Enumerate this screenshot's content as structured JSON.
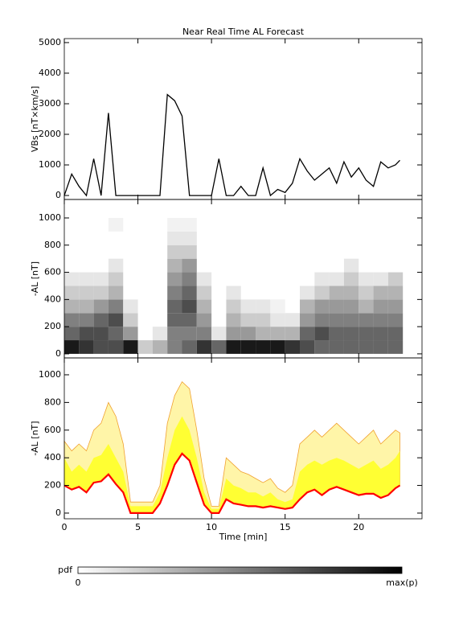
{
  "chart_data": [
    {
      "type": "line",
      "title": "Near Real Time AL Forecast",
      "ylabel": "VBs [nT×km/s]",
      "color": "#000000",
      "x": [
        0,
        0.5,
        1,
        1.5,
        2,
        2.5,
        3,
        3.5,
        4,
        4.5,
        5,
        5.5,
        6,
        6.5,
        7,
        7.5,
        8,
        8.5,
        9,
        9.5,
        10,
        10.5,
        11,
        11.5,
        12,
        12.5,
        13,
        13.5,
        14,
        14.5,
        15,
        15.5,
        16,
        16.5,
        17,
        17.5,
        18,
        18.5,
        19,
        19.5,
        20,
        20.5,
        21,
        21.5,
        22,
        22.5,
        22.8
      ],
      "values": [
        0,
        700,
        300,
        0,
        1200,
        0,
        2700,
        0,
        0,
        0,
        0,
        0,
        0,
        0,
        3300,
        3100,
        2600,
        0,
        0,
        0,
        0,
        1200,
        0,
        0,
        300,
        0,
        0,
        900,
        0,
        200,
        100,
        400,
        1200,
        800,
        500,
        700,
        900,
        400,
        1100,
        600,
        900,
        500,
        300,
        1100,
        900,
        1000,
        1150
      ],
      "xlim": [
        0,
        24.3
      ],
      "ylim": [
        -130,
        5130
      ],
      "xticks": [
        0,
        5,
        10,
        15,
        20
      ],
      "yticks": [
        0,
        1000,
        2000,
        3000,
        4000,
        5000
      ]
    },
    {
      "type": "heatmap",
      "ylabel": "-AL [nT]",
      "color": "#000000",
      "xbins": [
        0,
        1,
        2,
        3,
        4,
        5,
        6,
        7,
        8,
        9,
        10,
        11,
        12,
        13,
        14,
        15,
        16,
        17,
        18,
        19,
        20,
        21,
        22,
        23
      ],
      "ybins": [
        0,
        100,
        200,
        300,
        400,
        500,
        600,
        700,
        800,
        900,
        1000
      ],
      "z": [
        [
          0.9,
          0.6,
          0.5,
          0.3,
          0.2,
          0.1,
          0,
          0,
          0,
          0
        ],
        [
          0.8,
          0.7,
          0.5,
          0.3,
          0.2,
          0.1,
          0,
          0,
          0,
          0
        ],
        [
          0.7,
          0.7,
          0.6,
          0.4,
          0.2,
          0.1,
          0,
          0,
          0,
          0
        ],
        [
          0.7,
          0.6,
          0.7,
          0.5,
          0.3,
          0.2,
          0.1,
          0,
          0,
          0.05
        ],
        [
          0.9,
          0.4,
          0.2,
          0.1,
          0,
          0,
          0,
          0,
          0,
          0
        ],
        [
          0.2,
          0,
          0,
          0,
          0,
          0,
          0,
          0,
          0,
          0
        ],
        [
          0.3,
          0.1,
          0,
          0,
          0,
          0,
          0,
          0,
          0,
          0
        ],
        [
          0.5,
          0.5,
          0.6,
          0.6,
          0.5,
          0.4,
          0.3,
          0.2,
          0.1,
          0.05
        ],
        [
          0.6,
          0.5,
          0.6,
          0.7,
          0.6,
          0.5,
          0.4,
          0.2,
          0.1,
          0.05
        ],
        [
          0.8,
          0.5,
          0.4,
          0.3,
          0.2,
          0.1,
          0,
          0,
          0,
          0
        ],
        [
          0.6,
          0.1,
          0,
          0,
          0,
          0,
          0,
          0,
          0,
          0
        ],
        [
          0.9,
          0.4,
          0.3,
          0.2,
          0.1,
          0,
          0,
          0,
          0,
          0
        ],
        [
          0.9,
          0.4,
          0.2,
          0.1,
          0,
          0,
          0,
          0,
          0,
          0
        ],
        [
          0.9,
          0.3,
          0.2,
          0.1,
          0,
          0,
          0,
          0,
          0,
          0
        ],
        [
          0.9,
          0.3,
          0.1,
          0.05,
          0,
          0,
          0,
          0,
          0,
          0
        ],
        [
          0.8,
          0.3,
          0.1,
          0,
          0,
          0,
          0,
          0,
          0,
          0
        ],
        [
          0.7,
          0.6,
          0.4,
          0.3,
          0.1,
          0,
          0,
          0,
          0,
          0
        ],
        [
          0.6,
          0.7,
          0.5,
          0.4,
          0.2,
          0.1,
          0,
          0,
          0,
          0
        ],
        [
          0.6,
          0.6,
          0.5,
          0.4,
          0.3,
          0.1,
          0,
          0,
          0,
          0
        ],
        [
          0.6,
          0.6,
          0.5,
          0.4,
          0.3,
          0.2,
          0.1,
          0,
          0,
          0
        ],
        [
          0.6,
          0.6,
          0.5,
          0.3,
          0.2,
          0.1,
          0,
          0,
          0,
          0
        ],
        [
          0.6,
          0.6,
          0.5,
          0.4,
          0.3,
          0.1,
          0,
          0,
          0,
          0
        ],
        [
          0.6,
          0.6,
          0.5,
          0.4,
          0.3,
          0.2,
          0,
          0,
          0,
          0
        ]
      ],
      "xlim": [
        0,
        24.3
      ],
      "ylim": [
        -30,
        1136
      ],
      "xticks": [
        0,
        5,
        10,
        15,
        20
      ],
      "yticks": [
        0,
        200,
        400,
        600,
        800,
        1000
      ]
    },
    {
      "type": "band",
      "ylabel": "-AL [nT]",
      "xlabel": "Time [min]",
      "color": "#ff0000",
      "x": [
        0,
        0.5,
        1,
        1.5,
        2,
        2.5,
        3,
        3.5,
        4,
        4.5,
        5,
        5.5,
        6,
        6.5,
        7,
        7.5,
        8,
        8.5,
        9,
        9.5,
        10,
        10.5,
        11,
        11.5,
        12,
        12.5,
        13,
        13.5,
        14,
        14.5,
        15,
        15.5,
        16,
        16.5,
        17,
        17.5,
        18,
        18.5,
        19,
        19.5,
        20,
        20.5,
        21,
        21.5,
        22,
        22.5,
        22.8
      ],
      "values": [
        200,
        170,
        190,
        150,
        220,
        230,
        280,
        210,
        150,
        0,
        0,
        0,
        0,
        70,
        200,
        350,
        430,
        380,
        220,
        60,
        0,
        0,
        100,
        70,
        60,
        50,
        50,
        40,
        50,
        40,
        30,
        40,
        100,
        150,
        170,
        130,
        170,
        190,
        170,
        150,
        130,
        140,
        140,
        110,
        130,
        180,
        200
      ],
      "bands": [
        {
          "color": "#fff5a8",
          "values": [
            520,
            450,
            500,
            450,
            600,
            650,
            800,
            700,
            500,
            80,
            80,
            80,
            80,
            200,
            650,
            850,
            950,
            900,
            600,
            250,
            50,
            50,
            400,
            350,
            300,
            280,
            250,
            220,
            250,
            180,
            150,
            200,
            500,
            550,
            600,
            550,
            600,
            650,
            600,
            550,
            500,
            550,
            600,
            500,
            550,
            600,
            580
          ]
        },
        {
          "color": "#ffff33",
          "values": [
            400,
            300,
            350,
            300,
            400,
            420,
            500,
            400,
            300,
            50,
            50,
            50,
            50,
            150,
            400,
            600,
            700,
            600,
            400,
            150,
            30,
            30,
            250,
            200,
            180,
            150,
            150,
            120,
            150,
            100,
            80,
            100,
            300,
            350,
            380,
            350,
            380,
            400,
            380,
            350,
            320,
            350,
            380,
            320,
            350,
            400,
            450
          ]
        }
      ],
      "xlim": [
        0,
        24.3
      ],
      "ylim": [
        -41,
        1122
      ],
      "xticks": [
        0,
        5,
        10,
        15,
        20
      ],
      "yticks": [
        0,
        200,
        400,
        600,
        800,
        1000
      ]
    }
  ],
  "colorbar": {
    "label": "pdf",
    "min_label": "0",
    "max_label": "max(p)"
  }
}
